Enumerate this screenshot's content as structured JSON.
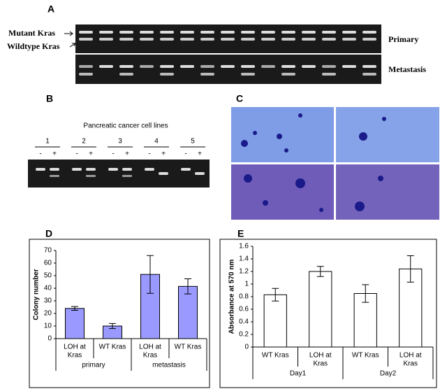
{
  "figure": {
    "panel_a": {
      "label": "A",
      "row_labels": [
        "Mutant Kras",
        "Wildtype Kras"
      ],
      "gel_labels": [
        "Primary",
        "Metastasis"
      ]
    },
    "panel_b": {
      "label": "B",
      "title": "Pancreatic cancer cell lines",
      "lanes": [
        "1",
        "2",
        "3",
        "4",
        "5"
      ],
      "treatments": [
        "-",
        "+"
      ]
    },
    "panel_c": {
      "label": "C"
    }
  },
  "chart_data": [
    {
      "type": "bar",
      "panel_label": "D",
      "ylabel": "Colony number",
      "categories": [
        [
          "LOH at",
          "Kras"
        ],
        [
          "WT Kras"
        ],
        [
          "LOH at",
          "Kras"
        ],
        [
          "WT Kras"
        ]
      ],
      "groups": [
        "primary",
        "metastasis"
      ],
      "values": [
        24,
        10,
        51,
        41.5
      ],
      "errors": [
        1.5,
        2,
        15,
        6
      ],
      "color": "#9999ff",
      "ylim": [
        0,
        70
      ],
      "yticks": [
        0,
        10,
        20,
        30,
        40,
        50,
        60,
        70
      ]
    },
    {
      "type": "bar",
      "panel_label": "E",
      "ylabel": "Absorbance at 570 nm",
      "categories": [
        [
          "WT Kras"
        ],
        [
          "LOH at",
          "Kras"
        ],
        [
          "WT Kras"
        ],
        [
          "LOH at",
          "Kras"
        ]
      ],
      "groups": [
        "Day1",
        "Day2"
      ],
      "values": [
        0.83,
        1.2,
        0.85,
        1.24
      ],
      "errors": [
        0.1,
        0.08,
        0.14,
        0.21
      ],
      "color": "#ffffff",
      "ylim": [
        0,
        1.6
      ],
      "yticks": [
        0,
        0.2,
        0.4,
        0.6,
        0.8,
        1,
        1.2,
        1.4,
        1.6
      ]
    }
  ]
}
